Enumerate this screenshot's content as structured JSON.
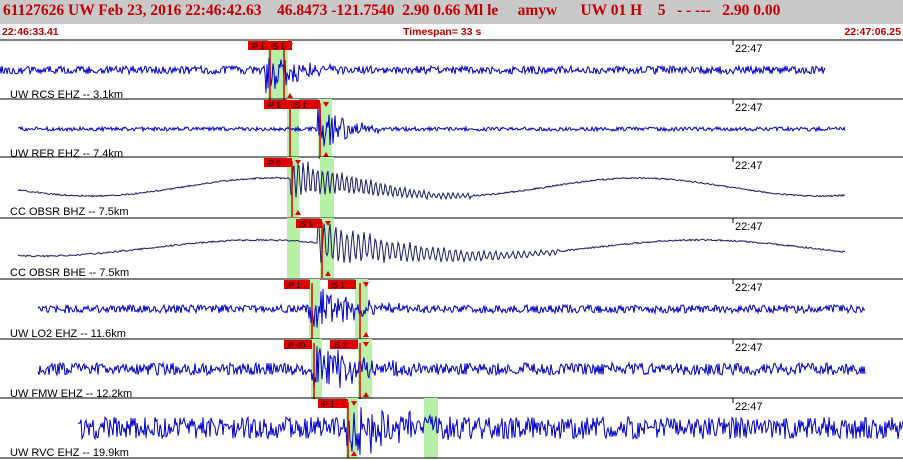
{
  "header": {
    "title": "61127626 UW Feb 23, 2016 22:46:42.63    46.8473 -121.7540  2.90 0.66 Ml le     amyw      UW 01 H    5   - - ---   2.90 0.00",
    "time_start": "22:46:33.41",
    "timespan": "Timespan=  33 s",
    "time_end": "22:47:06.25"
  },
  "colors": {
    "header_bg": "#c9c9c9",
    "header_text": "#c00000",
    "waveform": "#0000cc",
    "waveform_dark": "#1a1a66",
    "pick": "#e00000",
    "pick_window": "#b8f0a8"
  },
  "tick_label": "22:47",
  "traces": [
    {
      "label": "UW RCS EHZ -- 3.1km",
      "picks": [
        "iP 1",
        "iS 1"
      ],
      "color": "#0000cc"
    },
    {
      "label": "UW RER EHZ -- 7.4km",
      "picks": [
        "iP 1",
        "iS 1"
      ],
      "color": "#0000cc"
    },
    {
      "label": "CC OBSR BHZ -- 7.5km",
      "picks": [
        "iP 0"
      ],
      "color": "#1a1a66"
    },
    {
      "label": "CC OBSR BHE -- 7.5km",
      "picks": [
        "iS 1"
      ],
      "color": "#1a1a66"
    },
    {
      "label": "UW LO2 EHZ -- 11.6km",
      "picks": [
        "iP 1",
        "iS 1"
      ],
      "color": "#0000cc"
    },
    {
      "label": "UW FMW EHZ -- 12.2km",
      "picks": [
        "iP d0",
        "iS 2"
      ],
      "color": "#0000cc"
    },
    {
      "label": "UW RVC EHZ -- 19.9km",
      "picks": [
        "iP 1"
      ],
      "color": "#0000cc"
    }
  ]
}
